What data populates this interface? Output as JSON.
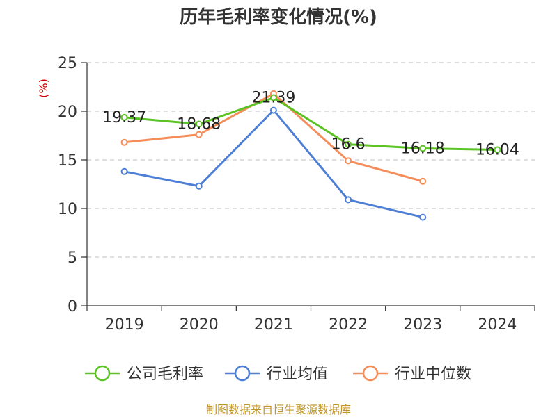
{
  "chart_data": {
    "type": "line",
    "title": "历年毛利率变化情况(%)",
    "unit_label": "(%)",
    "categories": [
      "2019",
      "2020",
      "2021",
      "2022",
      "2023",
      "2024"
    ],
    "ylim": [
      0,
      25
    ],
    "yticks": [
      0,
      5,
      10,
      15,
      20,
      25
    ],
    "grid": true,
    "legend_position": "bottom",
    "series": [
      {
        "name": "公司毛利率",
        "color": "#5bc424",
        "values": [
          19.37,
          18.68,
          21.39,
          16.6,
          16.18,
          16.04
        ],
        "labels": [
          "19.37",
          "18.68",
          "21.39",
          "16.6",
          "16.18",
          "16.04"
        ]
      },
      {
        "name": "行业均值",
        "color": "#4e7fd6",
        "values": [
          13.8,
          12.3,
          20.1,
          10.9,
          9.1,
          null
        ]
      },
      {
        "name": "行业中位数",
        "color": "#f58d5a",
        "values": [
          16.8,
          17.6,
          21.8,
          14.9,
          12.8,
          null
        ]
      }
    ],
    "source": "制图数据来自恒生聚源数据库"
  }
}
